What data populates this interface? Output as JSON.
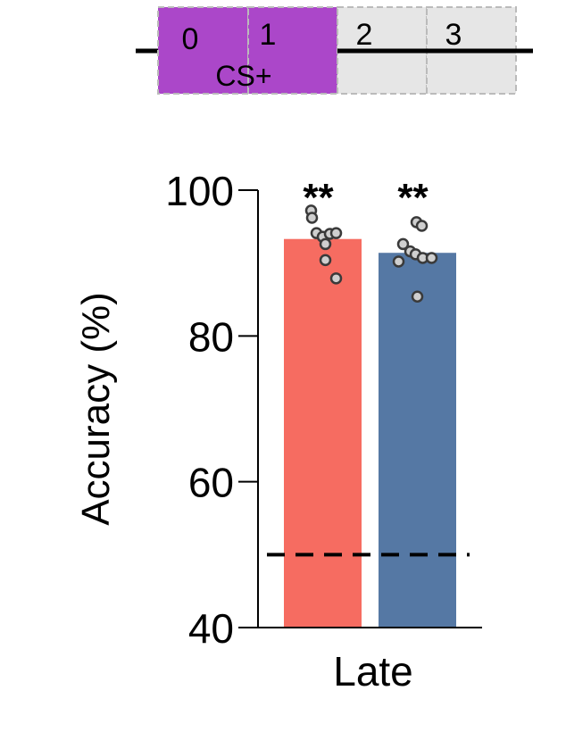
{
  "timeline": {
    "segments": [
      {
        "label": "0",
        "highlighted": true
      },
      {
        "label": "1",
        "highlighted": true
      },
      {
        "label": "2",
        "highlighted": false
      },
      {
        "label": "3",
        "highlighted": false
      }
    ],
    "stimulus_label": "CS+",
    "highlight_color": "#ab47c9",
    "inactive_color": "#e6e6e6"
  },
  "chart_data": {
    "type": "bar",
    "ylabel": "Accuracy (%)",
    "ylim": [
      40,
      100
    ],
    "yticks": [
      "40",
      "60",
      "80",
      "100"
    ],
    "category_label": "Late",
    "chance_level": 50,
    "series": [
      {
        "color": "#f66c61",
        "value": 93.3,
        "significance": "**",
        "points": [
          97.2,
          96.2,
          94.1,
          93.6,
          94.0,
          92.6,
          94.1,
          90.4,
          87.9
        ]
      },
      {
        "color": "#5578a4",
        "value": 91.4,
        "significance": "**",
        "points": [
          95.6,
          95.1,
          92.6,
          91.6,
          91.2,
          90.7,
          90.2,
          90.7,
          85.4
        ]
      }
    ]
  }
}
